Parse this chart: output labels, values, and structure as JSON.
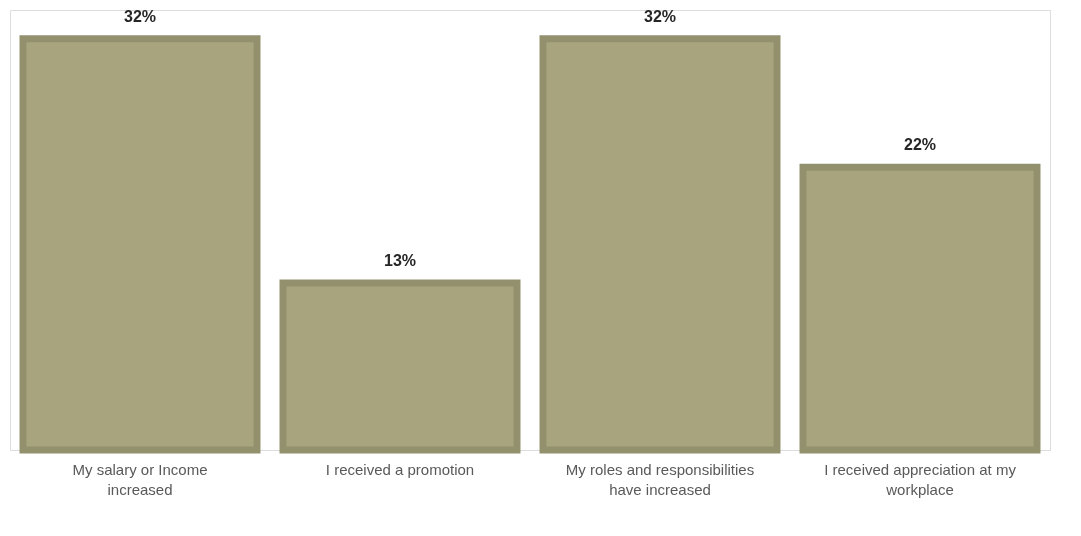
{
  "chart_data": {
    "type": "bar",
    "categories": [
      "My salary or Income increased",
      "I received a promotion",
      "My roles and responsibilities have increased",
      "I received appreciation at my workplace"
    ],
    "values": [
      32,
      13,
      32,
      22
    ],
    "color": "#a8a47e",
    "value_labels": [
      "32%",
      "13%",
      "32%",
      "22%"
    ]
  }
}
